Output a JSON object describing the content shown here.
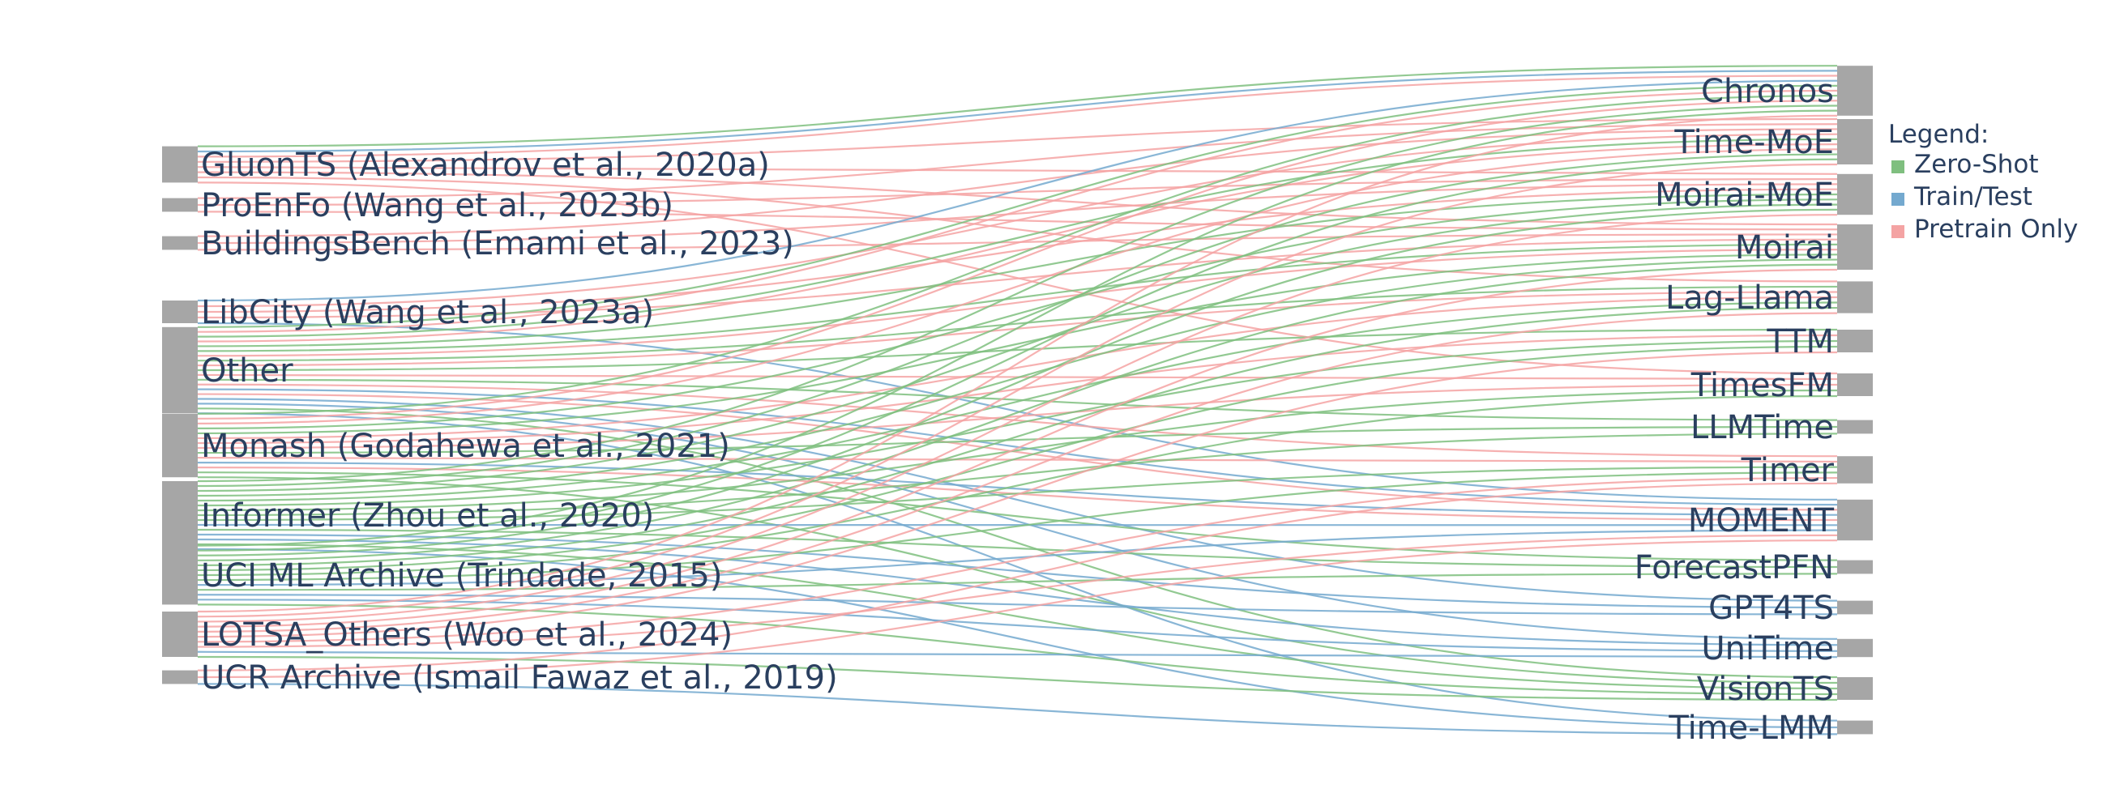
{
  "chart_data": {
    "type": "sankey",
    "sources": [
      "GluonTS (Alexandrov et al., 2020a)",
      "ProEnFo (Wang et al., 2023b)",
      "BuildingsBench (Emami et al., 2023)",
      "LibCity (Wang et al., 2023a)",
      "Other",
      "Monash (Godahewa et al., 2021)",
      "Informer (Zhou et al., 2020)",
      "UCI ML Archive (Trindade, 2015)",
      "LOTSA_Others (Woo et al., 2024)",
      "UCR Archive (Ismail Fawaz et al., 2019)"
    ],
    "targets": [
      "Chronos",
      "Time-MoE",
      "Moirai-MoE",
      "Moirai",
      "Lag-Llama",
      "TTM",
      "TimesFM",
      "LLMTime",
      "Timer",
      "MOMENT",
      "ForecastPFN",
      "GPT4TS",
      "UniTime",
      "VisionTS",
      "Time-LMM"
    ],
    "link_types": {
      "Z": {
        "label": "Zero-Shot",
        "color": "#7fbf7f"
      },
      "T": {
        "label": "Train/Test",
        "color": "#74a9cf"
      },
      "P": {
        "label": "Pretrain Only",
        "color": "#f4a3a3"
      }
    },
    "links": [
      [
        "GluonTS (Alexandrov et al., 2020a)",
        "Chronos",
        "Z"
      ],
      [
        "GluonTS (Alexandrov et al., 2020a)",
        "Chronos",
        "T"
      ],
      [
        "GluonTS (Alexandrov et al., 2020a)",
        "Chronos",
        "P"
      ],
      [
        "GluonTS (Alexandrov et al., 2020a)",
        "Time-MoE",
        "P"
      ],
      [
        "GluonTS (Alexandrov et al., 2020a)",
        "Moirai",
        "P"
      ],
      [
        "GluonTS (Alexandrov et al., 2020a)",
        "Moirai-MoE",
        "P"
      ],
      [
        "GluonTS (Alexandrov et al., 2020a)",
        "Lag-Llama",
        "P"
      ],
      [
        "GluonTS (Alexandrov et al., 2020a)",
        "TimesFM",
        "P"
      ],
      [
        "ProEnFo (Wang et al., 2023b)",
        "Moirai",
        "P"
      ],
      [
        "ProEnFo (Wang et al., 2023b)",
        "Moirai-MoE",
        "P"
      ],
      [
        "ProEnFo (Wang et al., 2023b)",
        "Time-MoE",
        "P"
      ],
      [
        "BuildingsBench (Emami et al., 2023)",
        "Moirai",
        "P"
      ],
      [
        "BuildingsBench (Emami et al., 2023)",
        "Moirai-MoE",
        "P"
      ],
      [
        "BuildingsBench (Emami et al., 2023)",
        "Time-MoE",
        "P"
      ],
      [
        "LibCity (Wang et al., 2023a)",
        "Moirai",
        "P"
      ],
      [
        "LibCity (Wang et al., 2023a)",
        "Moirai-MoE",
        "P"
      ],
      [
        "LibCity (Wang et al., 2023a)",
        "Time-MoE",
        "P"
      ],
      [
        "LibCity (Wang et al., 2023a)",
        "Chronos",
        "T"
      ],
      [
        "LibCity (Wang et al., 2023a)",
        "MOMENT",
        "T"
      ],
      [
        "Other",
        "Chronos",
        "Z"
      ],
      [
        "Other",
        "Chronos",
        "P"
      ],
      [
        "Other",
        "Time-MoE",
        "Z"
      ],
      [
        "Other",
        "Time-MoE",
        "P"
      ],
      [
        "Other",
        "Moirai-MoE",
        "Z"
      ],
      [
        "Other",
        "Moirai",
        "Z"
      ],
      [
        "Other",
        "Moirai",
        "P"
      ],
      [
        "Other",
        "Lag-Llama",
        "Z"
      ],
      [
        "Other",
        "Lag-Llama",
        "P"
      ],
      [
        "Other",
        "TTM",
        "Z"
      ],
      [
        "Other",
        "TimesFM",
        "P"
      ],
      [
        "Other",
        "LLMTime",
        "Z"
      ],
      [
        "Other",
        "Timer",
        "P"
      ],
      [
        "Other",
        "MOMENT",
        "T"
      ],
      [
        "Other",
        "MOMENT",
        "P"
      ],
      [
        "Other",
        "GPT4TS",
        "T"
      ],
      [
        "Other",
        "UniTime",
        "T"
      ],
      [
        "Other",
        "VisionTS",
        "Z"
      ],
      [
        "Other",
        "Time-LMM",
        "T"
      ],
      [
        "Monash (Godahewa et al., 2021)",
        "Chronos",
        "Z"
      ],
      [
        "Monash (Godahewa et al., 2021)",
        "Chronos",
        "P"
      ],
      [
        "Monash (Godahewa et al., 2021)",
        "Time-MoE",
        "P"
      ],
      [
        "Monash (Godahewa et al., 2021)",
        "Moirai-MoE",
        "Z"
      ],
      [
        "Monash (Godahewa et al., 2021)",
        "Moirai",
        "Z"
      ],
      [
        "Monash (Godahewa et al., 2021)",
        "Lag-Llama",
        "P"
      ],
      [
        "Monash (Godahewa et al., 2021)",
        "TTM",
        "P"
      ],
      [
        "Monash (Godahewa et al., 2021)",
        "TimesFM",
        "P"
      ],
      [
        "Monash (Godahewa et al., 2021)",
        "LLMTime",
        "Z"
      ],
      [
        "Monash (Godahewa et al., 2021)",
        "Timer",
        "P"
      ],
      [
        "Monash (Godahewa et al., 2021)",
        "MOMENT",
        "T"
      ],
      [
        "Monash (Godahewa et al., 2021)",
        "MOMENT",
        "P"
      ],
      [
        "Monash (Godahewa et al., 2021)",
        "ForecastPFN",
        "Z"
      ],
      [
        "Monash (Godahewa et al., 2021)",
        "VisionTS",
        "Z"
      ],
      [
        "Informer (Zhou et al., 2020)",
        "Chronos",
        "Z"
      ],
      [
        "Informer (Zhou et al., 2020)",
        "Time-MoE",
        "Z"
      ],
      [
        "Informer (Zhou et al., 2020)",
        "Moirai-MoE",
        "Z"
      ],
      [
        "Informer (Zhou et al., 2020)",
        "Moirai",
        "Z"
      ],
      [
        "Informer (Zhou et al., 2020)",
        "Lag-Llama",
        "Z"
      ],
      [
        "Informer (Zhou et al., 2020)",
        "TTM",
        "Z"
      ],
      [
        "Informer (Zhou et al., 2020)",
        "TimesFM",
        "Z"
      ],
      [
        "Informer (Zhou et al., 2020)",
        "LLMTime",
        "Z"
      ],
      [
        "Informer (Zhou et al., 2020)",
        "Timer",
        "Z"
      ],
      [
        "Informer (Zhou et al., 2020)",
        "MOMENT",
        "T"
      ],
      [
        "Informer (Zhou et al., 2020)",
        "ForecastPFN",
        "Z"
      ],
      [
        "Informer (Zhou et al., 2020)",
        "GPT4TS",
        "T"
      ],
      [
        "Informer (Zhou et al., 2020)",
        "UniTime",
        "T"
      ],
      [
        "Informer (Zhou et al., 2020)",
        "VisionTS",
        "Z"
      ],
      [
        "Informer (Zhou et al., 2020)",
        "Time-LMM",
        "T"
      ],
      [
        "UCI ML Archive (Trindade, 2015)",
        "Chronos",
        "Z"
      ],
      [
        "UCI ML Archive (Trindade, 2015)",
        "Time-MoE",
        "Z"
      ],
      [
        "UCI ML Archive (Trindade, 2015)",
        "Moirai-MoE",
        "Z"
      ],
      [
        "UCI ML Archive (Trindade, 2015)",
        "Moirai",
        "Z"
      ],
      [
        "UCI ML Archive (Trindade, 2015)",
        "Lag-Llama",
        "Z"
      ],
      [
        "UCI ML Archive (Trindade, 2015)",
        "TTM",
        "Z"
      ],
      [
        "UCI ML Archive (Trindade, 2015)",
        "TimesFM",
        "Z"
      ],
      [
        "UCI ML Archive (Trindade, 2015)",
        "Timer",
        "Z"
      ],
      [
        "UCI ML Archive (Trindade, 2015)",
        "MOMENT",
        "T"
      ],
      [
        "UCI ML Archive (Trindade, 2015)",
        "ForecastPFN",
        "Z"
      ],
      [
        "UCI ML Archive (Trindade, 2015)",
        "GPT4TS",
        "T"
      ],
      [
        "UCI ML Archive (Trindade, 2015)",
        "UniTime",
        "T"
      ],
      [
        "UCI ML Archive (Trindade, 2015)",
        "VisionTS",
        "Z"
      ],
      [
        "LOTSA_Others (Woo et al., 2024)",
        "Chronos",
        "P"
      ],
      [
        "LOTSA_Others (Woo et al., 2024)",
        "Time-MoE",
        "P"
      ],
      [
        "LOTSA_Others (Woo et al., 2024)",
        "Moirai-MoE",
        "P"
      ],
      [
        "LOTSA_Others (Woo et al., 2024)",
        "Moirai",
        "P"
      ],
      [
        "LOTSA_Others (Woo et al., 2024)",
        "Lag-Llama",
        "P"
      ],
      [
        "LOTSA_Others (Woo et al., 2024)",
        "TTM",
        "P"
      ],
      [
        "LOTSA_Others (Woo et al., 2024)",
        "Timer",
        "P"
      ],
      [
        "LOTSA_Others (Woo et al., 2024)",
        "MOMENT",
        "P"
      ],
      [
        "LOTSA_Others (Woo et al., 2024)",
        "UniTime",
        "T"
      ],
      [
        "LOTSA_Others (Woo et al., 2024)",
        "VisionTS",
        "Z"
      ],
      [
        "UCR Archive (Ismail Fawaz et al., 2019)",
        "Timer",
        "P"
      ],
      [
        "UCR Archive (Ismail Fawaz et al., 2019)",
        "MOMENT",
        "P"
      ],
      [
        "UCR Archive (Ismail Fawaz et al., 2019)",
        "Time-LMM",
        "T"
      ]
    ],
    "legend": {
      "title": "Legend:",
      "placement": "right",
      "items": [
        {
          "label": "Zero-Shot",
          "color": "#7fbf7f"
        },
        {
          "label": "Train/Test",
          "color": "#74a9cf"
        },
        {
          "label": "Pretrain Only",
          "color": "#f4a3a3"
        }
      ]
    },
    "node_color": "#a6a6a6"
  }
}
